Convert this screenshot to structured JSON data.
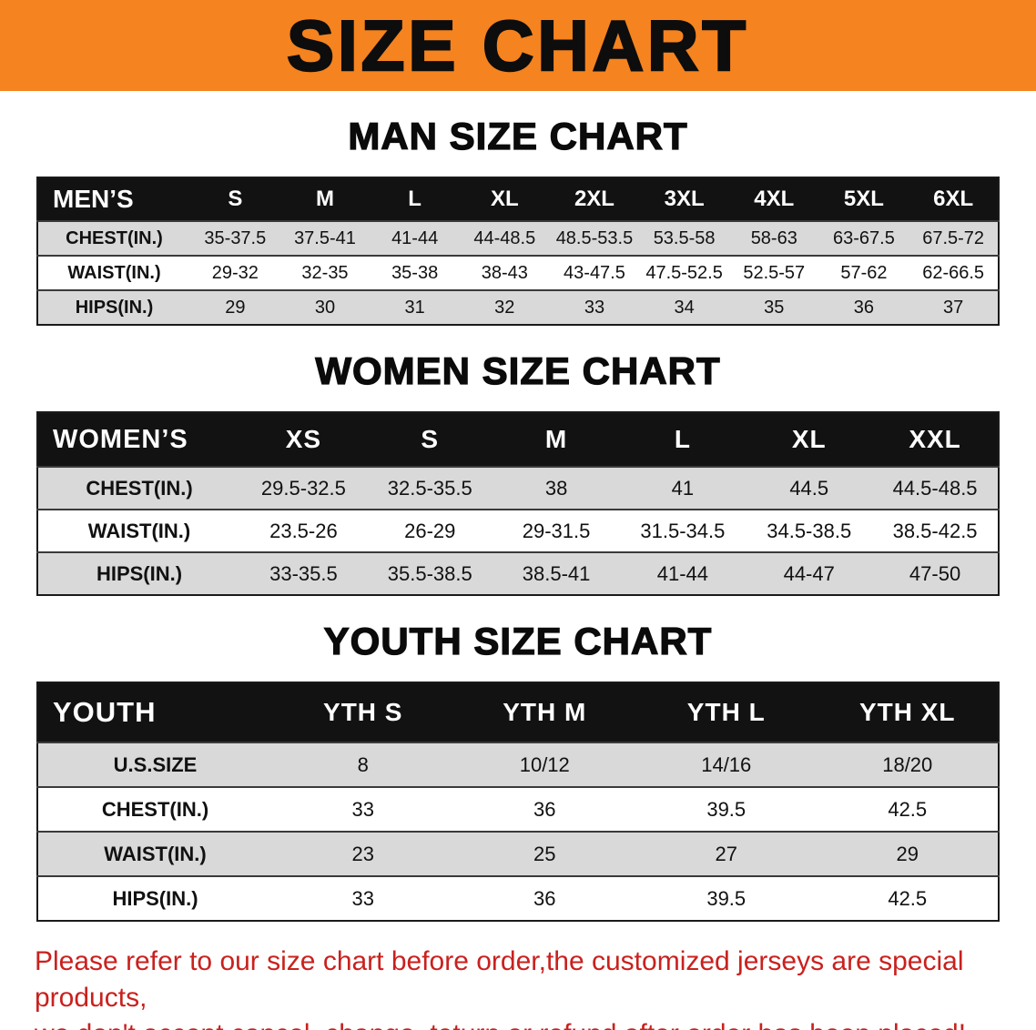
{
  "banner": {
    "title": "SIZE CHART",
    "bg_color": "#f5831f"
  },
  "sections": [
    {
      "id": "men",
      "heading": "MAN SIZE CHART",
      "table": {
        "header": [
          "MEN’S",
          "S",
          "M",
          "L",
          "XL",
          "2XL",
          "3XL",
          "4XL",
          "5XL",
          "6XL"
        ],
        "rows": [
          [
            "CHEST(IN.)",
            "35-37.5",
            "37.5-41",
            "41-44",
            "44-48.5",
            "48.5-53.5",
            "53.5-58",
            "58-63",
            "63-67.5",
            "67.5-72"
          ],
          [
            "WAIST(IN.)",
            "29-32",
            "32-35",
            "35-38",
            "38-43",
            "43-47.5",
            "47.5-52.5",
            "52.5-57",
            "57-62",
            "62-66.5"
          ],
          [
            "HIPS(IN.)",
            "29",
            "30",
            "31",
            "32",
            "33",
            "34",
            "35",
            "36",
            "37"
          ]
        ]
      }
    },
    {
      "id": "women",
      "heading": "WOMEN SIZE CHART",
      "table": {
        "header": [
          "WOMEN’S",
          "XS",
          "S",
          "M",
          "L",
          "XL",
          "XXL"
        ],
        "rows": [
          [
            "CHEST(IN.)",
            "29.5-32.5",
            "32.5-35.5",
            "38",
            "41",
            "44.5",
            "44.5-48.5"
          ],
          [
            "WAIST(IN.)",
            "23.5-26",
            "26-29",
            "29-31.5",
            "31.5-34.5",
            "34.5-38.5",
            "38.5-42.5"
          ],
          [
            "HIPS(IN.)",
            "33-35.5",
            "35.5-38.5",
            "38.5-41",
            "41-44",
            "44-47",
            "47-50"
          ]
        ]
      }
    },
    {
      "id": "youth",
      "heading": "YOUTH SIZE CHART",
      "table": {
        "header": [
          "YOUTH",
          "YTH S",
          "YTH M",
          "YTH L",
          "YTH XL"
        ],
        "rows": [
          [
            "U.S.SIZE",
            "8",
            "10/12",
            "14/16",
            "18/20"
          ],
          [
            "CHEST(IN.)",
            "33",
            "36",
            "39.5",
            "42.5"
          ],
          [
            "WAIST(IN.)",
            "23",
            "25",
            "27",
            "29"
          ],
          [
            "HIPS(IN.)",
            "33",
            "36",
            "39.5",
            "42.5"
          ]
        ]
      }
    }
  ],
  "note": {
    "color": "#c9211e",
    "lines": [
      "Please refer to our size chart before order,the customized jerseys are special products,",
      "we don't accept cancel, change, teturn or refund after order has been placed!"
    ]
  }
}
